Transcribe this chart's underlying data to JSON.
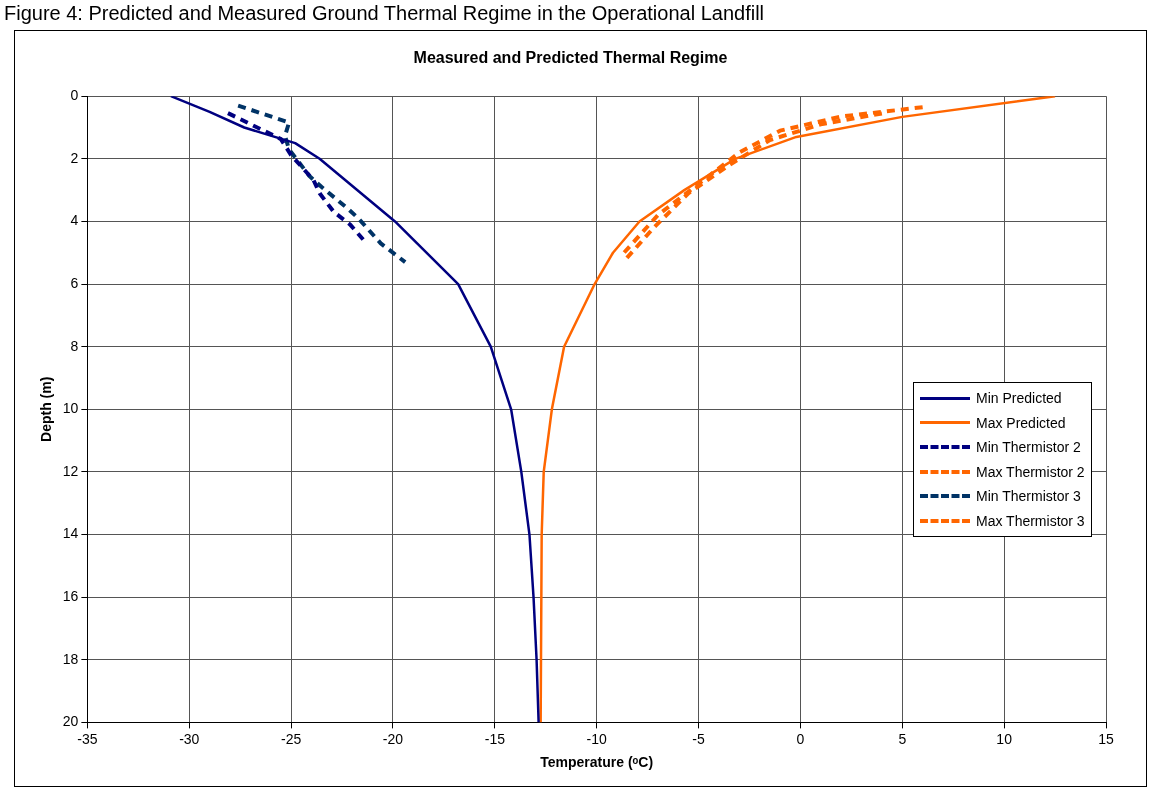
{
  "chart_data": {
    "type": "line",
    "title": "Figure 4: Predicted and Measured Ground Thermal Regime in the Operational Landfill",
    "subtitle": "Measured and Predicted Thermal Regime",
    "xlabel": "Temperature (ᵒC)",
    "ylabel": "Depth (m)",
    "xlim": [
      -35,
      15
    ],
    "xticks": [
      -35,
      -30,
      -25,
      -20,
      -15,
      -10,
      -5,
      0,
      5,
      10,
      15
    ],
    "ylim": [
      20,
      0
    ],
    "yticks": [
      0,
      2,
      4,
      6,
      8,
      10,
      12,
      14,
      16,
      18,
      20
    ],
    "grid": true,
    "legend": "right",
    "marker": "none",
    "series": [
      {
        "name": "Min Predicted",
        "color": "#000080",
        "line_style": "solid",
        "x": [
          -30.9,
          -29.0,
          -27.3,
          -24.8,
          -23.6,
          -19.9,
          -16.8,
          -15.2,
          -14.4,
          -14.2,
          -13.7,
          -13.3,
          -13.1,
          -12.95,
          -12.85
        ],
        "values": [
          0,
          0.5,
          1,
          1.5,
          2,
          4,
          6,
          8,
          9.6,
          10,
          12,
          14,
          16,
          18,
          20
        ]
      },
      {
        "name": "Max Predicted",
        "color": "#ff6600",
        "line_style": "solid",
        "x": [
          12.5,
          5.0,
          -0.2,
          -3.2,
          -5.7,
          -7.9,
          -9.2,
          -10.1,
          -11.6,
          -12.2,
          -12.6,
          -12.7,
          -12.75
        ],
        "values": [
          0,
          0.66,
          1.3,
          2,
          3,
          4,
          5,
          6,
          8,
          10,
          12,
          14,
          20
        ]
      },
      {
        "name": "Min Thermistor 2",
        "color": "#000080",
        "line_style": "dashed",
        "x": [
          -28.1,
          -25.5,
          -25.0,
          -23.9,
          -23.6,
          -22.9,
          -22.1,
          -21.3
        ],
        "values": [
          0.54,
          1.37,
          1.88,
          2.68,
          3.1,
          3.7,
          4.1,
          4.7
        ]
      },
      {
        "name": "Max Thermistor 2",
        "color": "#ff6600",
        "line_style": "dashed",
        "x": [
          4.0,
          1.0,
          -1.5,
          -3.5,
          -5.5,
          -7.2,
          -8.7
        ],
        "values": [
          0.55,
          0.9,
          1.4,
          2.2,
          3.1,
          4.2,
          5.3
        ]
      },
      {
        "name": "Min Thermistor 3",
        "color": "#003366",
        "line_style": "dashed",
        "x": [
          -27.6,
          -25.1,
          -25.3,
          -25.1,
          -24.1,
          -23.5,
          -22.2,
          -21.7,
          -20.6,
          -19.4
        ],
        "values": [
          0.3,
          0.84,
          1.27,
          1.7,
          2.55,
          2.9,
          3.6,
          3.9,
          4.7,
          5.3
        ]
      },
      {
        "name": "Max Thermistor 3",
        "color": "#ff6600",
        "line_style": "dashed",
        "x": [
          6.0,
          2.0,
          -1.0,
          -3.0,
          -5.0,
          -7.0,
          -8.8
        ],
        "values": [
          0.35,
          0.65,
          1.1,
          1.8,
          2.8,
          3.8,
          5.1
        ]
      }
    ]
  }
}
